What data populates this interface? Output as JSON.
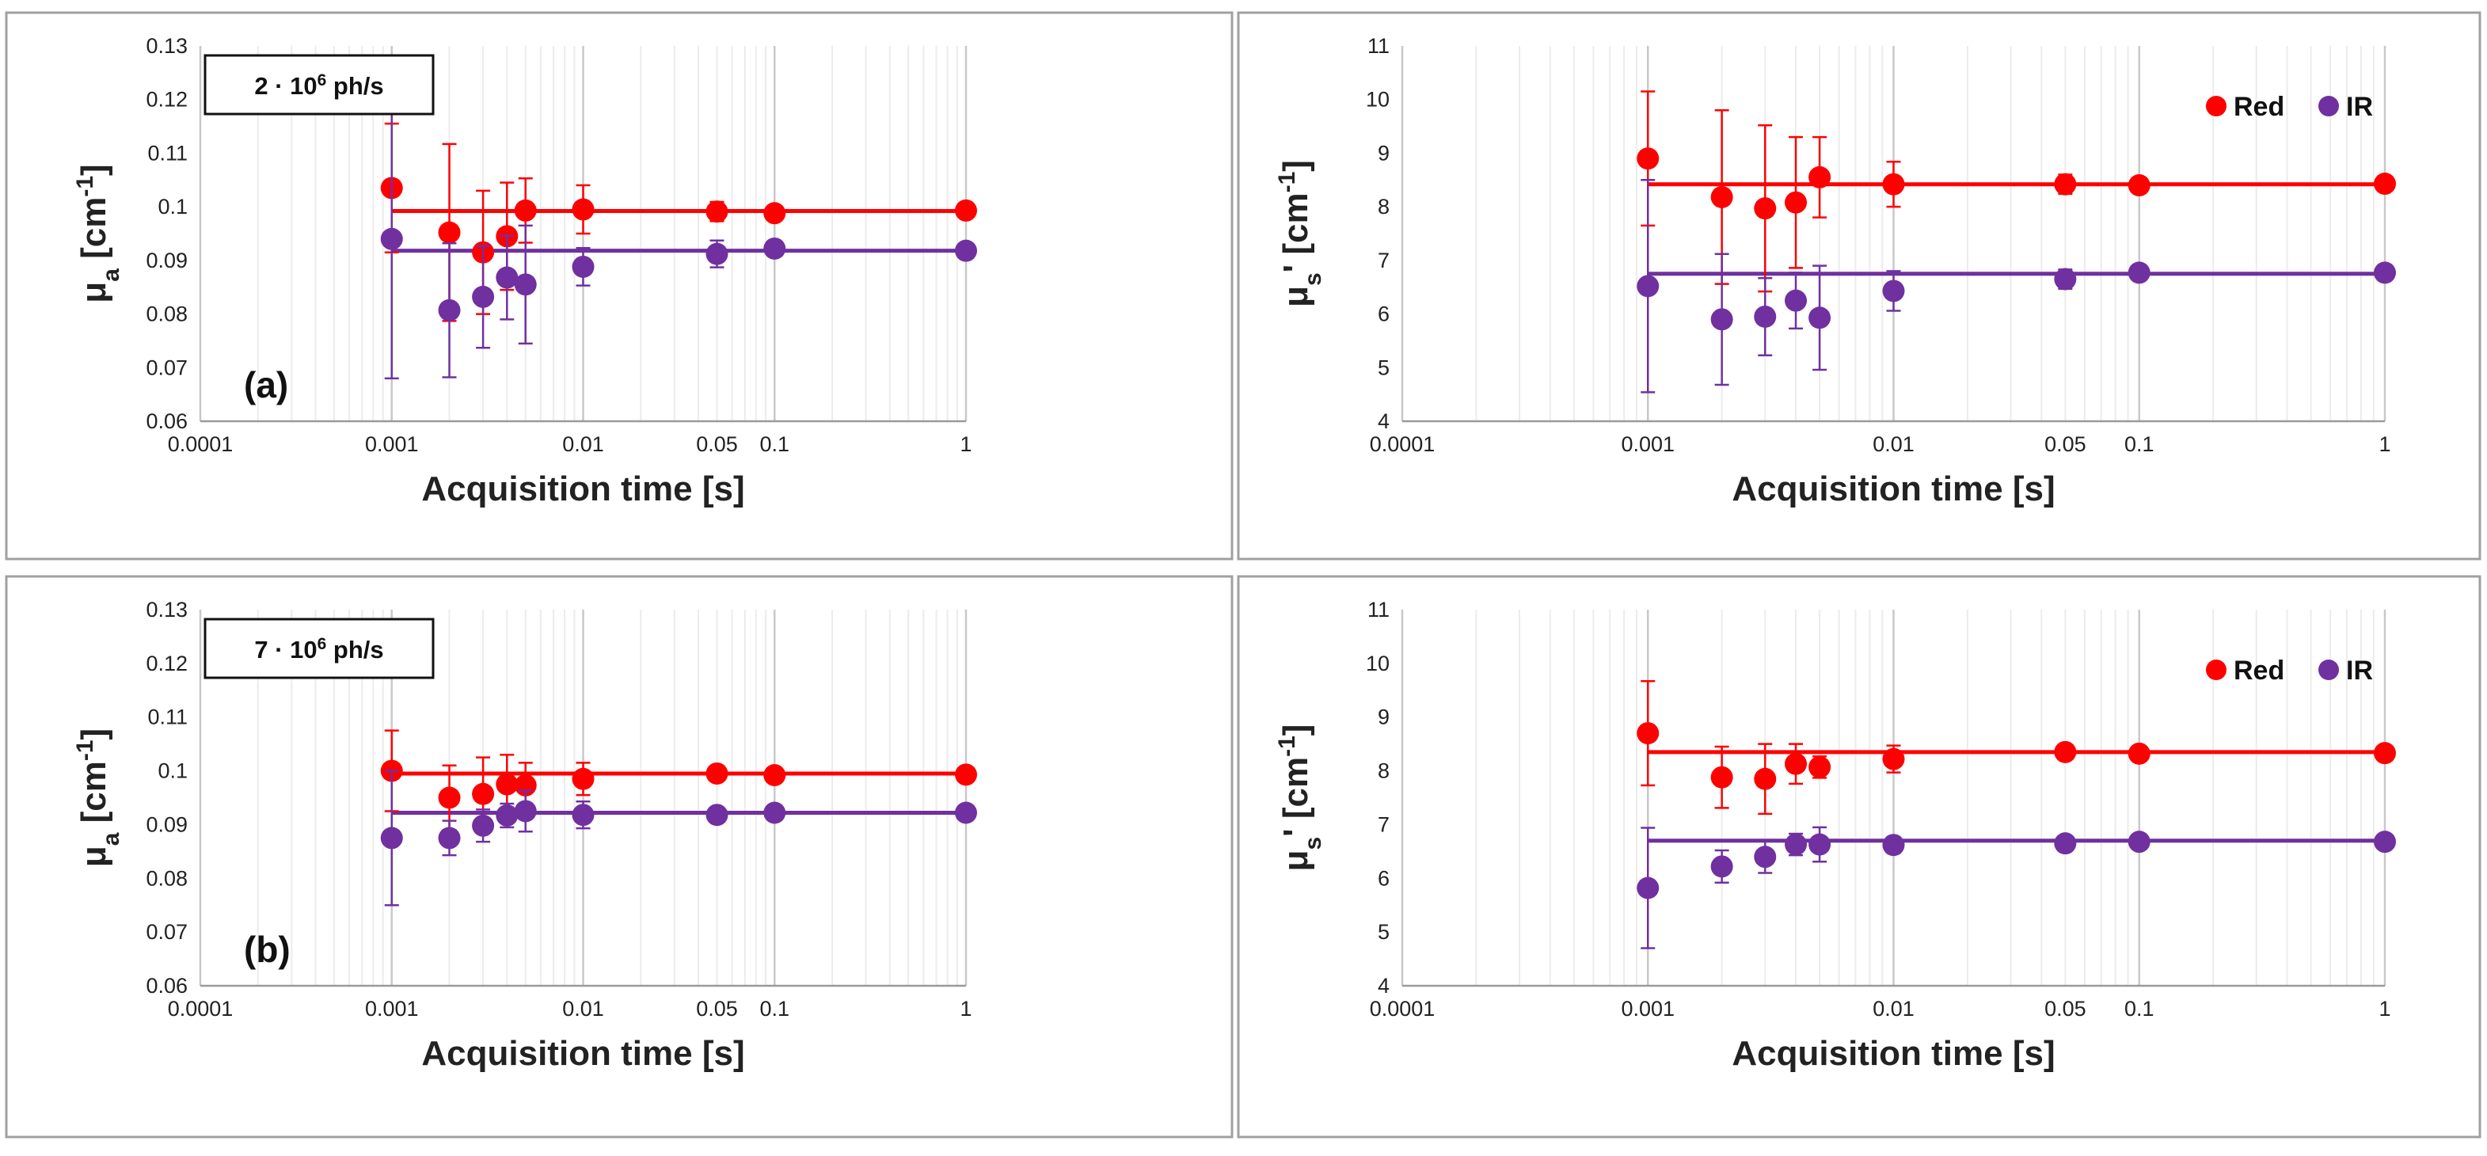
{
  "colors": {
    "red": "#ff0000",
    "ir": "#7030a0",
    "grid_major": "#c8c8c8",
    "grid_minor": "#ececec",
    "frame": "#a0a0a0"
  },
  "legend": {
    "red_label": "Red",
    "ir_label": "IR"
  },
  "chart_data": [
    {
      "id": "tl",
      "type": "scatter",
      "xscale": "log",
      "xlim": [
        0.0001,
        1
      ],
      "ylim": [
        0.06,
        0.13
      ],
      "xticks": [
        0.0001,
        0.001,
        0.01,
        0.05,
        0.1,
        1
      ],
      "xtick_labels": [
        "0.0001",
        "0.001",
        "0.01",
        "0.05",
        "0.1",
        "1"
      ],
      "yticks": [
        0.06,
        0.07,
        0.08,
        0.09,
        0.1,
        0.11,
        0.12,
        0.13
      ],
      "ytick_labels": [
        "0.06",
        "0.07",
        "0.08",
        "0.09",
        "0.1",
        "0.11",
        "0.12",
        "0.13"
      ],
      "xlabel": "Acquisition time [s]",
      "ylabel": {
        "main": "μ",
        "sub": "a",
        "tail": " [cm",
        "sup": "-1",
        "end": "]"
      },
      "panel_label": "(a)",
      "box": {
        "main": "2 · 10",
        "sup": "6",
        "tail": " ph/s"
      },
      "legend": false,
      "series": [
        {
          "name": "Red",
          "ref": 0.0992,
          "x": [
            0.001,
            0.002,
            0.003,
            0.004,
            0.005,
            0.01,
            0.05,
            0.1,
            1
          ],
          "y": [
            0.1035,
            0.0952,
            0.0915,
            0.0945,
            0.0993,
            0.0995,
            0.0991,
            0.0988,
            0.0993
          ],
          "err": [
            0.012,
            0.0165,
            0.0115,
            0.01,
            0.006,
            0.0045,
            0.0018,
            0.001,
            0.0008
          ]
        },
        {
          "name": "IR",
          "ref": 0.0918,
          "x": [
            0.001,
            0.002,
            0.003,
            0.004,
            0.005,
            0.01,
            0.05,
            0.1,
            1
          ],
          "y": [
            0.094,
            0.0807,
            0.0832,
            0.0868,
            0.0855,
            0.0888,
            0.0912,
            0.0922,
            0.0918
          ],
          "err": [
            0.026,
            0.0125,
            0.0095,
            0.0078,
            0.011,
            0.0035,
            0.0025,
            0.0008,
            0.0006
          ]
        }
      ]
    },
    {
      "id": "tr",
      "type": "scatter",
      "xscale": "log",
      "xlim": [
        0.0001,
        1
      ],
      "ylim": [
        4,
        11
      ],
      "xticks": [
        0.0001,
        0.001,
        0.01,
        0.05,
        0.1,
        1
      ],
      "xtick_labels": [
        "0.0001",
        "0.001",
        "0.01",
        "0.05",
        "0.1",
        "1"
      ],
      "yticks": [
        4,
        5,
        6,
        7,
        8,
        9,
        10,
        11
      ],
      "ytick_labels": [
        "4",
        "5",
        "6",
        "7",
        "8",
        "9",
        "10",
        "11"
      ],
      "xlabel": "Acquisition time [s]",
      "ylabel": {
        "main": "μ",
        "sub": "s",
        "tail": "' [cm",
        "sup": "-1",
        "end": "]"
      },
      "panel_label": "",
      "box": null,
      "legend": true,
      "series": [
        {
          "name": "Red",
          "ref": 8.42,
          "x": [
            0.001,
            0.002,
            0.003,
            0.004,
            0.005,
            0.01,
            0.05,
            0.1,
            1
          ],
          "y": [
            8.9,
            8.18,
            7.97,
            8.08,
            8.55,
            8.42,
            8.42,
            8.4,
            8.43
          ],
          "err": [
            1.25,
            1.62,
            1.55,
            1.22,
            0.75,
            0.42,
            0.18,
            0.08,
            0.06
          ]
        },
        {
          "name": "IR",
          "ref": 6.75,
          "x": [
            0.001,
            0.002,
            0.003,
            0.004,
            0.005,
            0.01,
            0.05,
            0.1,
            1
          ],
          "y": [
            6.52,
            5.9,
            5.95,
            6.25,
            5.93,
            6.43,
            6.65,
            6.77,
            6.77
          ],
          "err": [
            1.98,
            1.22,
            0.72,
            0.52,
            0.97,
            0.37,
            0.18,
            0.07,
            0.05
          ]
        }
      ]
    },
    {
      "id": "bl",
      "type": "scatter",
      "xscale": "log",
      "xlim": [
        0.0001,
        1
      ],
      "ylim": [
        0.06,
        0.13
      ],
      "xticks": [
        0.0001,
        0.001,
        0.01,
        0.05,
        0.1,
        1
      ],
      "xtick_labels": [
        "0.0001",
        "0.001",
        "0.01",
        "0.05",
        "0.1",
        "1"
      ],
      "yticks": [
        0.06,
        0.07,
        0.08,
        0.09,
        0.1,
        0.11,
        0.12,
        0.13
      ],
      "ytick_labels": [
        "0.06",
        "0.07",
        "0.08",
        "0.09",
        "0.1",
        "0.11",
        "0.12",
        "0.13"
      ],
      "xlabel": "Acquisition time [s]",
      "ylabel": {
        "main": "μ",
        "sub": "a",
        "tail": " [cm",
        "sup": "-1",
        "end": "]"
      },
      "panel_label": "(b)",
      "box": {
        "main": "7 · 10",
        "sup": "6",
        "tail": " ph/s"
      },
      "legend": false,
      "series": [
        {
          "name": "Red",
          "ref": 0.0995,
          "x": [
            0.001,
            0.002,
            0.003,
            0.004,
            0.005,
            0.01,
            0.05,
            0.1,
            1
          ],
          "y": [
            0.1,
            0.095,
            0.0957,
            0.0975,
            0.0973,
            0.0985,
            0.0995,
            0.0992,
            0.0993
          ],
          "err": [
            0.0075,
            0.006,
            0.0068,
            0.0055,
            0.0042,
            0.003,
            0.001,
            0.0008,
            0.0006
          ]
        },
        {
          "name": "IR",
          "ref": 0.0922,
          "x": [
            0.001,
            0.002,
            0.003,
            0.004,
            0.005,
            0.01,
            0.05,
            0.1,
            1
          ],
          "y": [
            0.0875,
            0.0875,
            0.0898,
            0.0917,
            0.0925,
            0.0918,
            0.0918,
            0.0922,
            0.0922
          ],
          "err": [
            0.0125,
            0.0032,
            0.003,
            0.0022,
            0.0038,
            0.0025,
            0.0008,
            0.0006,
            0.0005
          ]
        }
      ]
    },
    {
      "id": "br",
      "type": "scatter",
      "xscale": "log",
      "xlim": [
        0.0001,
        1
      ],
      "ylim": [
        4,
        11
      ],
      "xticks": [
        0.0001,
        0.001,
        0.01,
        0.05,
        0.1,
        1
      ],
      "xtick_labels": [
        "0.0001",
        "0.001",
        "0.01",
        "0.05",
        "0.1",
        "1"
      ],
      "yticks": [
        4,
        5,
        6,
        7,
        8,
        9,
        10,
        11
      ],
      "ytick_labels": [
        "4",
        "5",
        "6",
        "7",
        "8",
        "9",
        "10",
        "11"
      ],
      "xlabel": "Acquisition time [s]",
      "ylabel": {
        "main": "μ",
        "sub": "s",
        "tail": "' [cm",
        "sup": "-1",
        "end": "]"
      },
      "panel_label": "",
      "box": null,
      "legend": true,
      "series": [
        {
          "name": "Red",
          "ref": 8.35,
          "x": [
            0.001,
            0.002,
            0.003,
            0.004,
            0.005,
            0.01,
            0.05,
            0.1,
            1
          ],
          "y": [
            8.7,
            7.88,
            7.85,
            8.13,
            8.07,
            8.22,
            8.35,
            8.32,
            8.33
          ],
          "err": [
            0.97,
            0.57,
            0.65,
            0.37,
            0.2,
            0.25,
            0.1,
            0.07,
            0.05
          ]
        },
        {
          "name": "IR",
          "ref": 6.7,
          "x": [
            0.001,
            0.002,
            0.003,
            0.004,
            0.005,
            0.01,
            0.05,
            0.1,
            1
          ],
          "y": [
            5.82,
            6.22,
            6.4,
            6.63,
            6.63,
            6.62,
            6.65,
            6.68,
            6.68
          ],
          "err": [
            1.12,
            0.3,
            0.3,
            0.2,
            0.32,
            0.15,
            0.08,
            0.06,
            0.05
          ]
        }
      ]
    }
  ]
}
